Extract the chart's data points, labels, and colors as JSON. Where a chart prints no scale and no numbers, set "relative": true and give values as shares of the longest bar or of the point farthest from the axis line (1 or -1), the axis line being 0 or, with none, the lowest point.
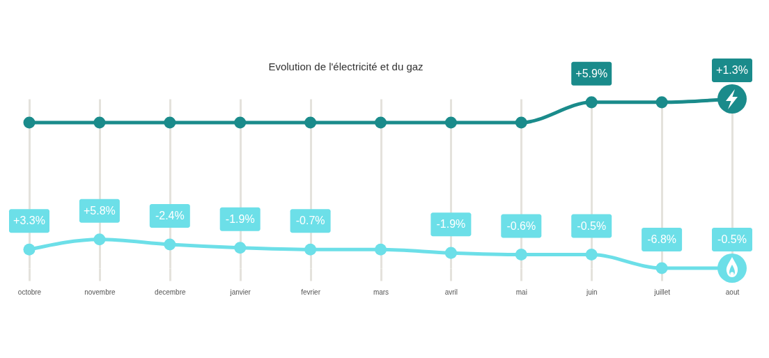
{
  "chart_data": {
    "type": "line",
    "title": "Evolution de l'électricité et du gaz",
    "categories": [
      "octobre",
      "novembre",
      "decembre",
      "janvier",
      "fevrier",
      "mars",
      "avril",
      "mai",
      "juin",
      "juillet",
      "aout"
    ],
    "relative": true,
    "series": [
      {
        "color": "#1a8b8b",
        "values": [
          0.86,
          0.86,
          0.86,
          0.86,
          0.86,
          0.86,
          0.86,
          0.86,
          0.98,
          0.98,
          1
        ]
      },
      {
        "color": "#6cdfe8",
        "values": [
          0.11,
          0.17,
          0.14,
          0.12,
          0.11,
          0.11,
          0.09,
          0.08,
          0.08,
          0,
          0
        ]
      }
    ],
    "annotations": [
      {
        "text": "+5.9%",
        "x": "juin",
        "y": 0.98
      },
      {
        "text": "+1.3%",
        "x": "aout",
        "y": 1
      },
      {
        "text": "+3.3%",
        "x": "octobre",
        "y": 0.11
      },
      {
        "text": "+5.8%",
        "x": "novembre",
        "y": 0.17
      },
      {
        "text": "-2.4%",
        "x": "decembre",
        "y": 0.14
      },
      {
        "text": "-1.9%",
        "x": "janvier",
        "y": 0.12
      },
      {
        "text": "-0.7%",
        "x": "fevrier",
        "y": 0.11
      },
      {
        "text": "-1.9%",
        "x": "avril",
        "y": 0.09
      },
      {
        "text": "-0.6%",
        "x": "mai",
        "y": 0.08
      },
      {
        "text": "-0.5%",
        "x": "juin",
        "y": 0.08
      },
      {
        "text": "-6.8%",
        "x": "juillet",
        "y": 0
      },
      {
        "text": "-0.5%",
        "x": "aout",
        "y": 0
      }
    ],
    "grid": "x",
    "marker": "circle"
  }
}
